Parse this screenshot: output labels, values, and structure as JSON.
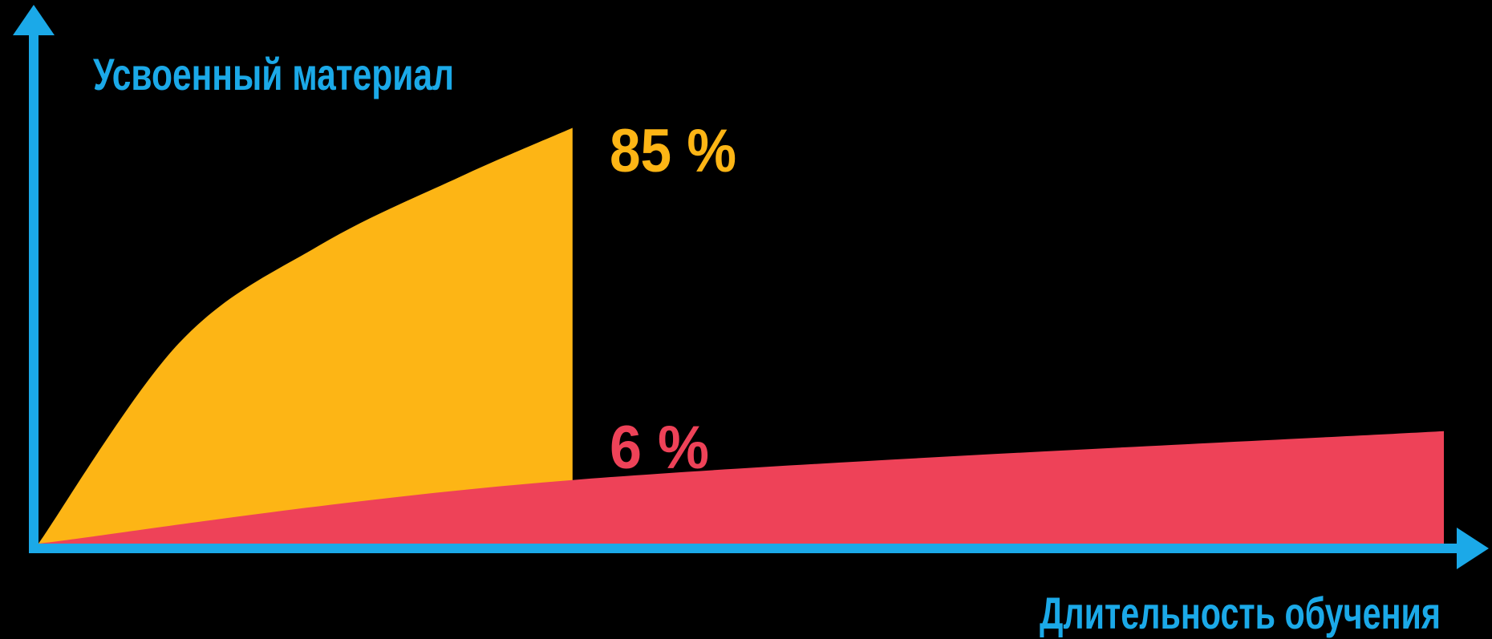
{
  "chart_data": {
    "type": "area",
    "title": "",
    "ylabel": "Усвоенный материал",
    "xlabel": "Длительность обучения",
    "ylim": [
      0,
      100
    ],
    "xlim": [
      0,
      100
    ],
    "grid": false,
    "legend": "none",
    "series": [
      {
        "color": "#FDB515",
        "x": [
          0,
          10,
          20,
          30,
          38
        ],
        "values": [
          0,
          41,
          61,
          75,
          85
        ],
        "annotation": "85 %"
      },
      {
        "color": "#EE4258",
        "x": [
          0,
          38,
          100
        ],
        "values": [
          0,
          13,
          23
        ],
        "annotation": "6 %"
      }
    ],
    "colors": {
      "axis": "#1BA9E8",
      "background": "#000000"
    }
  }
}
